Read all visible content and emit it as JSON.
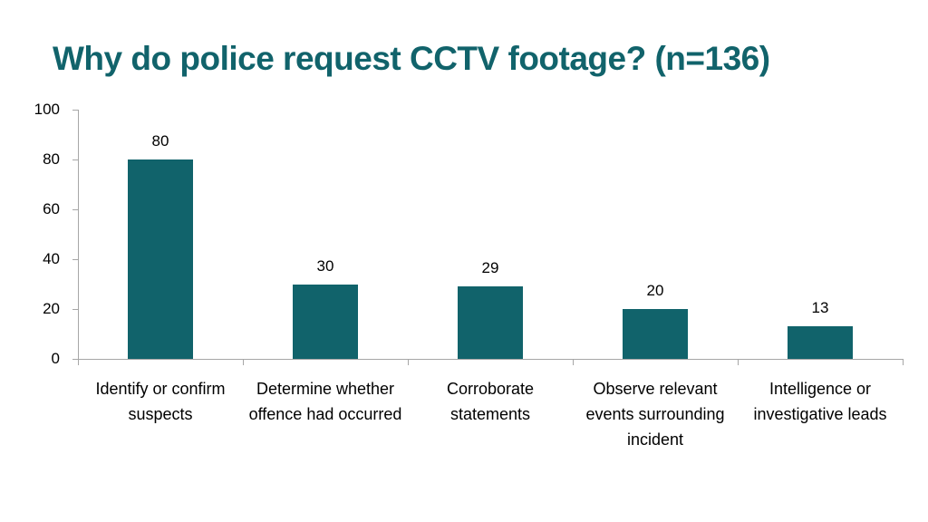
{
  "title": "Why do police request CCTV footage? (n=136)",
  "colors": {
    "bar": "#11636b",
    "title": "#11636b",
    "axis": "#a6a6a6"
  },
  "chart_data": {
    "type": "bar",
    "title": "Why do police request CCTV footage? (n=136)",
    "categories": [
      "Identify or confirm suspects",
      "Determine whether offence had occurred",
      "Corroborate statements",
      "Observe relevant events surrounding incident",
      "Intelligence or investigative leads"
    ],
    "values": [
      80,
      30,
      29,
      20,
      13
    ],
    "xlabel": "",
    "ylabel": "",
    "ylim": [
      0,
      100
    ],
    "yticks": [
      "0",
      "20",
      "40",
      "60",
      "80",
      "100"
    ],
    "grid": false,
    "legend": "none",
    "data_labels": [
      "80",
      "30",
      "29",
      "20",
      "13"
    ]
  }
}
